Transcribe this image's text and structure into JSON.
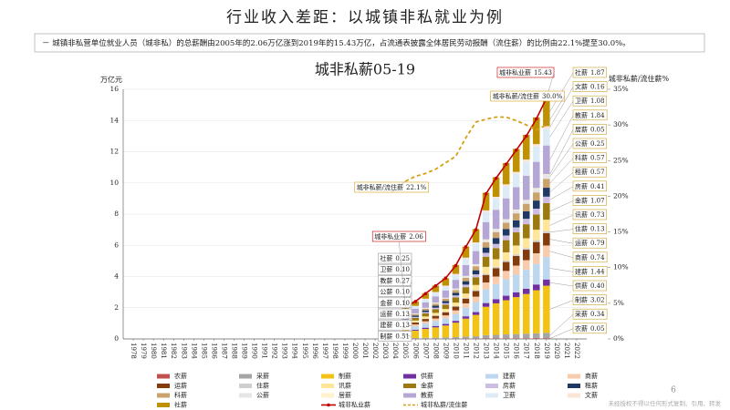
{
  "header": {
    "title": "行业收入差距：以城镇非私就业为例",
    "note": "－ 城镇非私营单位就业人员（城非私）的总薪酬由2005年的2.06万亿涨到2019年的15.43万亿，占流通表披露全体居民劳动报酬（流住薪）的比例由22.1%提至30.0%。"
  },
  "footer": {
    "page": "6",
    "disclaimer": "未经授权不得以任何形式复制、引用、转发"
  },
  "chart_data": {
    "type": "bar",
    "stacked": true,
    "title": "城非私薪05-19",
    "y_label": "万亿元",
    "y2_label": "城非私薪/流住薪%",
    "xlim": [
      1977,
      2023
    ],
    "xticks": [
      1978,
      1979,
      1980,
      1981,
      1982,
      1983,
      1984,
      1985,
      1986,
      1987,
      1988,
      1989,
      1990,
      1991,
      1992,
      1993,
      1994,
      1995,
      1996,
      1997,
      1998,
      1999,
      2000,
      2001,
      2002,
      2003,
      2004,
      2005,
      2006,
      2007,
      2008,
      2009,
      2010,
      2011,
      2012,
      2013,
      2014,
      2015,
      2016,
      2017,
      2018,
      2019,
      2020,
      2021,
      2022
    ],
    "ylim": [
      0,
      16
    ],
    "yticks": [
      0,
      2,
      4,
      6,
      8,
      10,
      12,
      14,
      16
    ],
    "y2lim": [
      0,
      35
    ],
    "y2ticks": [
      {
        "value": 0,
        "label": "0%"
      },
      {
        "value": 5,
        "label": "5%"
      },
      {
        "value": 10,
        "label": "10%"
      },
      {
        "value": 15,
        "label": "15%"
      },
      {
        "value": 20,
        "label": "20%"
      },
      {
        "value": 25,
        "label": "25%"
      },
      {
        "value": 30,
        "label": "30%"
      },
      {
        "value": 35,
        "label": "35%"
      }
    ],
    "grid": true,
    "x": [
      2005,
      2006,
      2007,
      2008,
      2009,
      2010,
      2011,
      2012,
      2013,
      2014,
      2015,
      2016,
      2017,
      2018,
      2019
    ],
    "series": [
      {
        "name": "农薪",
        "color": "#c0504d",
        "values": [
          0.01,
          0.01,
          0.01,
          0.01,
          0.01,
          0.02,
          0.02,
          0.02,
          0.03,
          0.03,
          0.04,
          0.04,
          0.04,
          0.05,
          0.05
        ],
        "value_labels": [
          null,
          null,
          null,
          null,
          null,
          null,
          null,
          null,
          null,
          null,
          null,
          null,
          null,
          null,
          "0.05"
        ]
      },
      {
        "name": "采薪",
        "color": "#a5a5a5",
        "values": [
          0.05,
          0.05,
          0.06,
          0.07,
          0.09,
          0.1,
          0.13,
          0.15,
          0.21,
          0.23,
          0.25,
          0.27,
          0.29,
          0.31,
          0.34
        ],
        "value_labels": [
          null,
          null,
          null,
          null,
          null,
          null,
          null,
          null,
          null,
          null,
          null,
          null,
          null,
          null,
          "0.34"
        ]
      },
      {
        "name": "制薪",
        "color": "#f2c314",
        "values": [
          0.51,
          0.47,
          0.57,
          0.66,
          0.76,
          0.92,
          1.15,
          1.37,
          1.82,
          2.02,
          2.19,
          2.37,
          2.55,
          2.76,
          3.02
        ],
        "value_labels": [
          "0.51",
          null,
          null,
          null,
          null,
          null,
          null,
          null,
          null,
          null,
          null,
          null,
          null,
          null,
          "3.02"
        ]
      },
      {
        "name": "供薪",
        "color": "#7030a0",
        "values": [
          0.05,
          0.06,
          0.08,
          0.09,
          0.1,
          0.12,
          0.15,
          0.18,
          0.24,
          0.27,
          0.29,
          0.31,
          0.34,
          0.37,
          0.4
        ],
        "value_labels": [
          null,
          null,
          null,
          null,
          null,
          null,
          null,
          null,
          null,
          null,
          null,
          null,
          null,
          null,
          "0.40"
        ]
      },
      {
        "name": "建薪",
        "color": "#bdd7ee",
        "values": [
          0.13,
          0.22,
          0.27,
          0.32,
          0.36,
          0.44,
          0.55,
          0.65,
          0.87,
          0.96,
          1.05,
          1.13,
          1.21,
          1.32,
          1.44
        ],
        "value_labels": [
          "0.13",
          null,
          null,
          null,
          null,
          null,
          null,
          null,
          null,
          null,
          null,
          null,
          null,
          null,
          "1.44"
        ]
      },
      {
        "name": "商薪",
        "color": "#f8cbad",
        "values": [
          0.1,
          0.12,
          0.14,
          0.16,
          0.19,
          0.23,
          0.28,
          0.34,
          0.45,
          0.49,
          0.54,
          0.58,
          0.62,
          0.68,
          0.74
        ],
        "value_labels": [
          null,
          null,
          null,
          null,
          null,
          null,
          null,
          null,
          null,
          null,
          null,
          null,
          null,
          null,
          "0.74"
        ]
      },
      {
        "name": "运薪",
        "color": "#843c0c",
        "values": [
          0.13,
          0.12,
          0.15,
          0.17,
          0.2,
          0.24,
          0.3,
          0.36,
          0.48,
          0.53,
          0.57,
          0.62,
          0.67,
          0.72,
          0.79
        ],
        "value_labels": [
          "0.13",
          null,
          null,
          null,
          null,
          null,
          null,
          null,
          null,
          null,
          null,
          null,
          null,
          null,
          "0.79"
        ]
      },
      {
        "name": "住薪",
        "color": "#d0cece",
        "values": [
          0.02,
          0.02,
          0.02,
          0.03,
          0.03,
          0.04,
          0.05,
          0.06,
          0.08,
          0.09,
          0.09,
          0.1,
          0.11,
          0.12,
          0.13
        ],
        "value_labels": [
          null,
          null,
          null,
          null,
          null,
          null,
          null,
          null,
          null,
          null,
          null,
          null,
          null,
          null,
          "0.13"
        ]
      },
      {
        "name": "讯薪",
        "color": "#ffe699",
        "values": [
          0.1,
          0.11,
          0.14,
          0.16,
          0.18,
          0.22,
          0.28,
          0.33,
          0.44,
          0.49,
          0.53,
          0.57,
          0.62,
          0.67,
          0.73
        ],
        "value_labels": [
          null,
          null,
          null,
          null,
          null,
          null,
          null,
          null,
          null,
          null,
          null,
          null,
          null,
          null,
          "0.73"
        ]
      },
      {
        "name": "金薪",
        "color": "#9c7a10",
        "values": [
          0.1,
          0.17,
          0.2,
          0.24,
          0.27,
          0.33,
          0.41,
          0.49,
          0.65,
          0.71,
          0.78,
          0.84,
          0.9,
          0.98,
          1.07
        ],
        "value_labels": [
          "0.10",
          null,
          null,
          null,
          null,
          null,
          null,
          null,
          null,
          null,
          null,
          null,
          null,
          null,
          "1.07"
        ]
      },
      {
        "name": "房薪",
        "color": "#cdbde3",
        "values": [
          0.05,
          0.06,
          0.08,
          0.09,
          0.1,
          0.13,
          0.16,
          0.19,
          0.25,
          0.27,
          0.3,
          0.32,
          0.35,
          0.37,
          0.41
        ],
        "value_labels": [
          null,
          null,
          null,
          null,
          null,
          null,
          null,
          null,
          null,
          null,
          null,
          null,
          null,
          null,
          "0.41"
        ]
      },
      {
        "name": "租薪",
        "color": "#1f3864",
        "values": [
          0.08,
          0.09,
          0.11,
          0.13,
          0.14,
          0.17,
          0.22,
          0.26,
          0.34,
          0.38,
          0.41,
          0.45,
          0.48,
          0.52,
          0.57
        ],
        "value_labels": [
          null,
          null,
          null,
          null,
          null,
          null,
          null,
          null,
          null,
          null,
          null,
          null,
          null,
          null,
          "0.57"
        ]
      },
      {
        "name": "科薪",
        "color": "#c9a36b",
        "values": [
          0.08,
          0.09,
          0.11,
          0.13,
          0.14,
          0.17,
          0.22,
          0.26,
          0.34,
          0.38,
          0.41,
          0.45,
          0.48,
          0.52,
          0.57
        ],
        "value_labels": [
          null,
          null,
          null,
          null,
          null,
          null,
          null,
          null,
          null,
          null,
          null,
          null,
          null,
          null,
          "0.57"
        ]
      },
      {
        "name": "公薪",
        "color": "#e7e6e6",
        "values": [
          0.1,
          0.04,
          0.05,
          0.06,
          0.06,
          0.08,
          0.1,
          0.11,
          0.15,
          0.17,
          0.18,
          0.2,
          0.21,
          0.23,
          0.25
        ],
        "value_labels": [
          "0.10",
          null,
          null,
          null,
          null,
          null,
          null,
          null,
          null,
          null,
          null,
          null,
          null,
          null,
          "0.25"
        ]
      },
      {
        "name": "居薪",
        "color": "#fff2cc",
        "values": [
          0.01,
          0.01,
          0.01,
          0.01,
          0.01,
          0.02,
          0.02,
          0.02,
          0.03,
          0.03,
          0.04,
          0.04,
          0.04,
          0.05,
          0.05
        ],
        "value_labels": [
          null,
          null,
          null,
          null,
          null,
          null,
          null,
          null,
          null,
          null,
          null,
          null,
          null,
          null,
          "0.05"
        ]
      },
      {
        "name": "教薪",
        "color": "#b4a7d6",
        "values": [
          0.27,
          0.29,
          0.35,
          0.4,
          0.47,
          0.56,
          0.7,
          0.84,
          1.11,
          1.23,
          1.34,
          1.44,
          1.55,
          1.68,
          1.84
        ],
        "value_labels": [
          "0.27",
          null,
          null,
          null,
          null,
          null,
          null,
          null,
          null,
          null,
          null,
          null,
          null,
          null,
          "1.84"
        ]
      },
      {
        "name": "卫薪",
        "color": "#ddebf7",
        "values": [
          0.1,
          0.17,
          0.2,
          0.24,
          0.27,
          0.33,
          0.41,
          0.49,
          0.65,
          0.72,
          0.78,
          0.85,
          0.91,
          0.99,
          1.08
        ],
        "value_labels": [
          "0.10",
          null,
          null,
          null,
          null,
          null,
          null,
          null,
          null,
          null,
          null,
          null,
          null,
          null,
          "1.08"
        ]
      },
      {
        "name": "文薪",
        "color": "#fbe5d6",
        "values": [
          0.02,
          0.02,
          0.03,
          0.04,
          0.04,
          0.05,
          0.06,
          0.07,
          0.1,
          0.11,
          0.12,
          0.13,
          0.13,
          0.15,
          0.16
        ],
        "value_labels": [
          null,
          null,
          null,
          null,
          null,
          null,
          null,
          null,
          null,
          null,
          null,
          null,
          null,
          null,
          "0.16"
        ]
      },
      {
        "name": "社薪",
        "color": "#bf9000",
        "values": [
          0.25,
          0.29,
          0.35,
          0.41,
          0.47,
          0.57,
          0.71,
          0.85,
          1.13,
          1.25,
          1.36,
          1.47,
          1.58,
          1.71,
          1.87
        ],
        "value_labels": [
          "0.25",
          null,
          null,
          null,
          null,
          null,
          null,
          null,
          null,
          null,
          null,
          null,
          null,
          null,
          "1.87"
        ]
      },
      {
        "name": "城非私业薪",
        "type": "line",
        "color": "#c00000",
        "values": [
          2.06,
          2.4,
          2.9,
          3.4,
          3.9,
          4.7,
          5.9,
          7.0,
          9.3,
          10.3,
          11.2,
          12.1,
          13.0,
          14.1,
          15.43
        ],
        "value_labels": [
          "2.06",
          null,
          null,
          null,
          null,
          null,
          null,
          null,
          null,
          null,
          null,
          null,
          null,
          null,
          "15.43"
        ]
      },
      {
        "name": "城非私薪/流住薪",
        "type": "line",
        "axis": "y2",
        "dashed": true,
        "color": "#d4a017",
        "values": [
          22.1,
          22.8,
          23.2,
          23.8,
          24.7,
          25.6,
          28.2,
          30.4,
          30.8,
          31.1,
          31.1,
          30.6,
          30.0,
          29.3,
          30.0
        ],
        "value_labels": [
          "22.1%",
          null,
          null,
          null,
          null,
          null,
          null,
          null,
          null,
          null,
          null,
          null,
          null,
          null,
          "30.0%"
        ]
      }
    ]
  }
}
